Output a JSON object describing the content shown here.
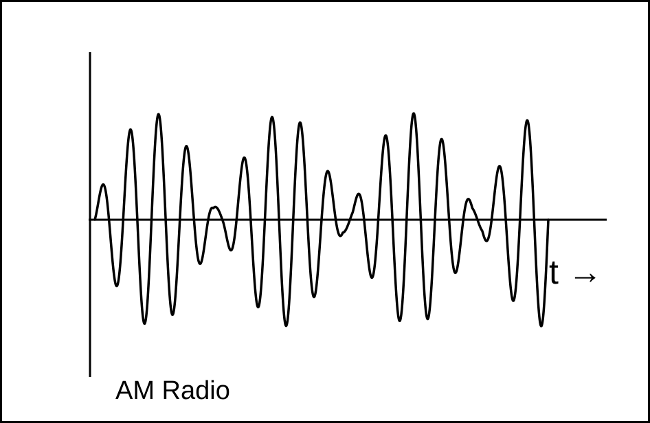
{
  "figure": {
    "time_axis_label": "t →",
    "caption": "AM Radio",
    "colors": {
      "stroke": "#000000",
      "background": "#ffffff"
    }
  },
  "waveform": {
    "type": "amplitude-modulated-carrier",
    "carrier_cycles": 16,
    "modulation_cycles": 3.5
  }
}
